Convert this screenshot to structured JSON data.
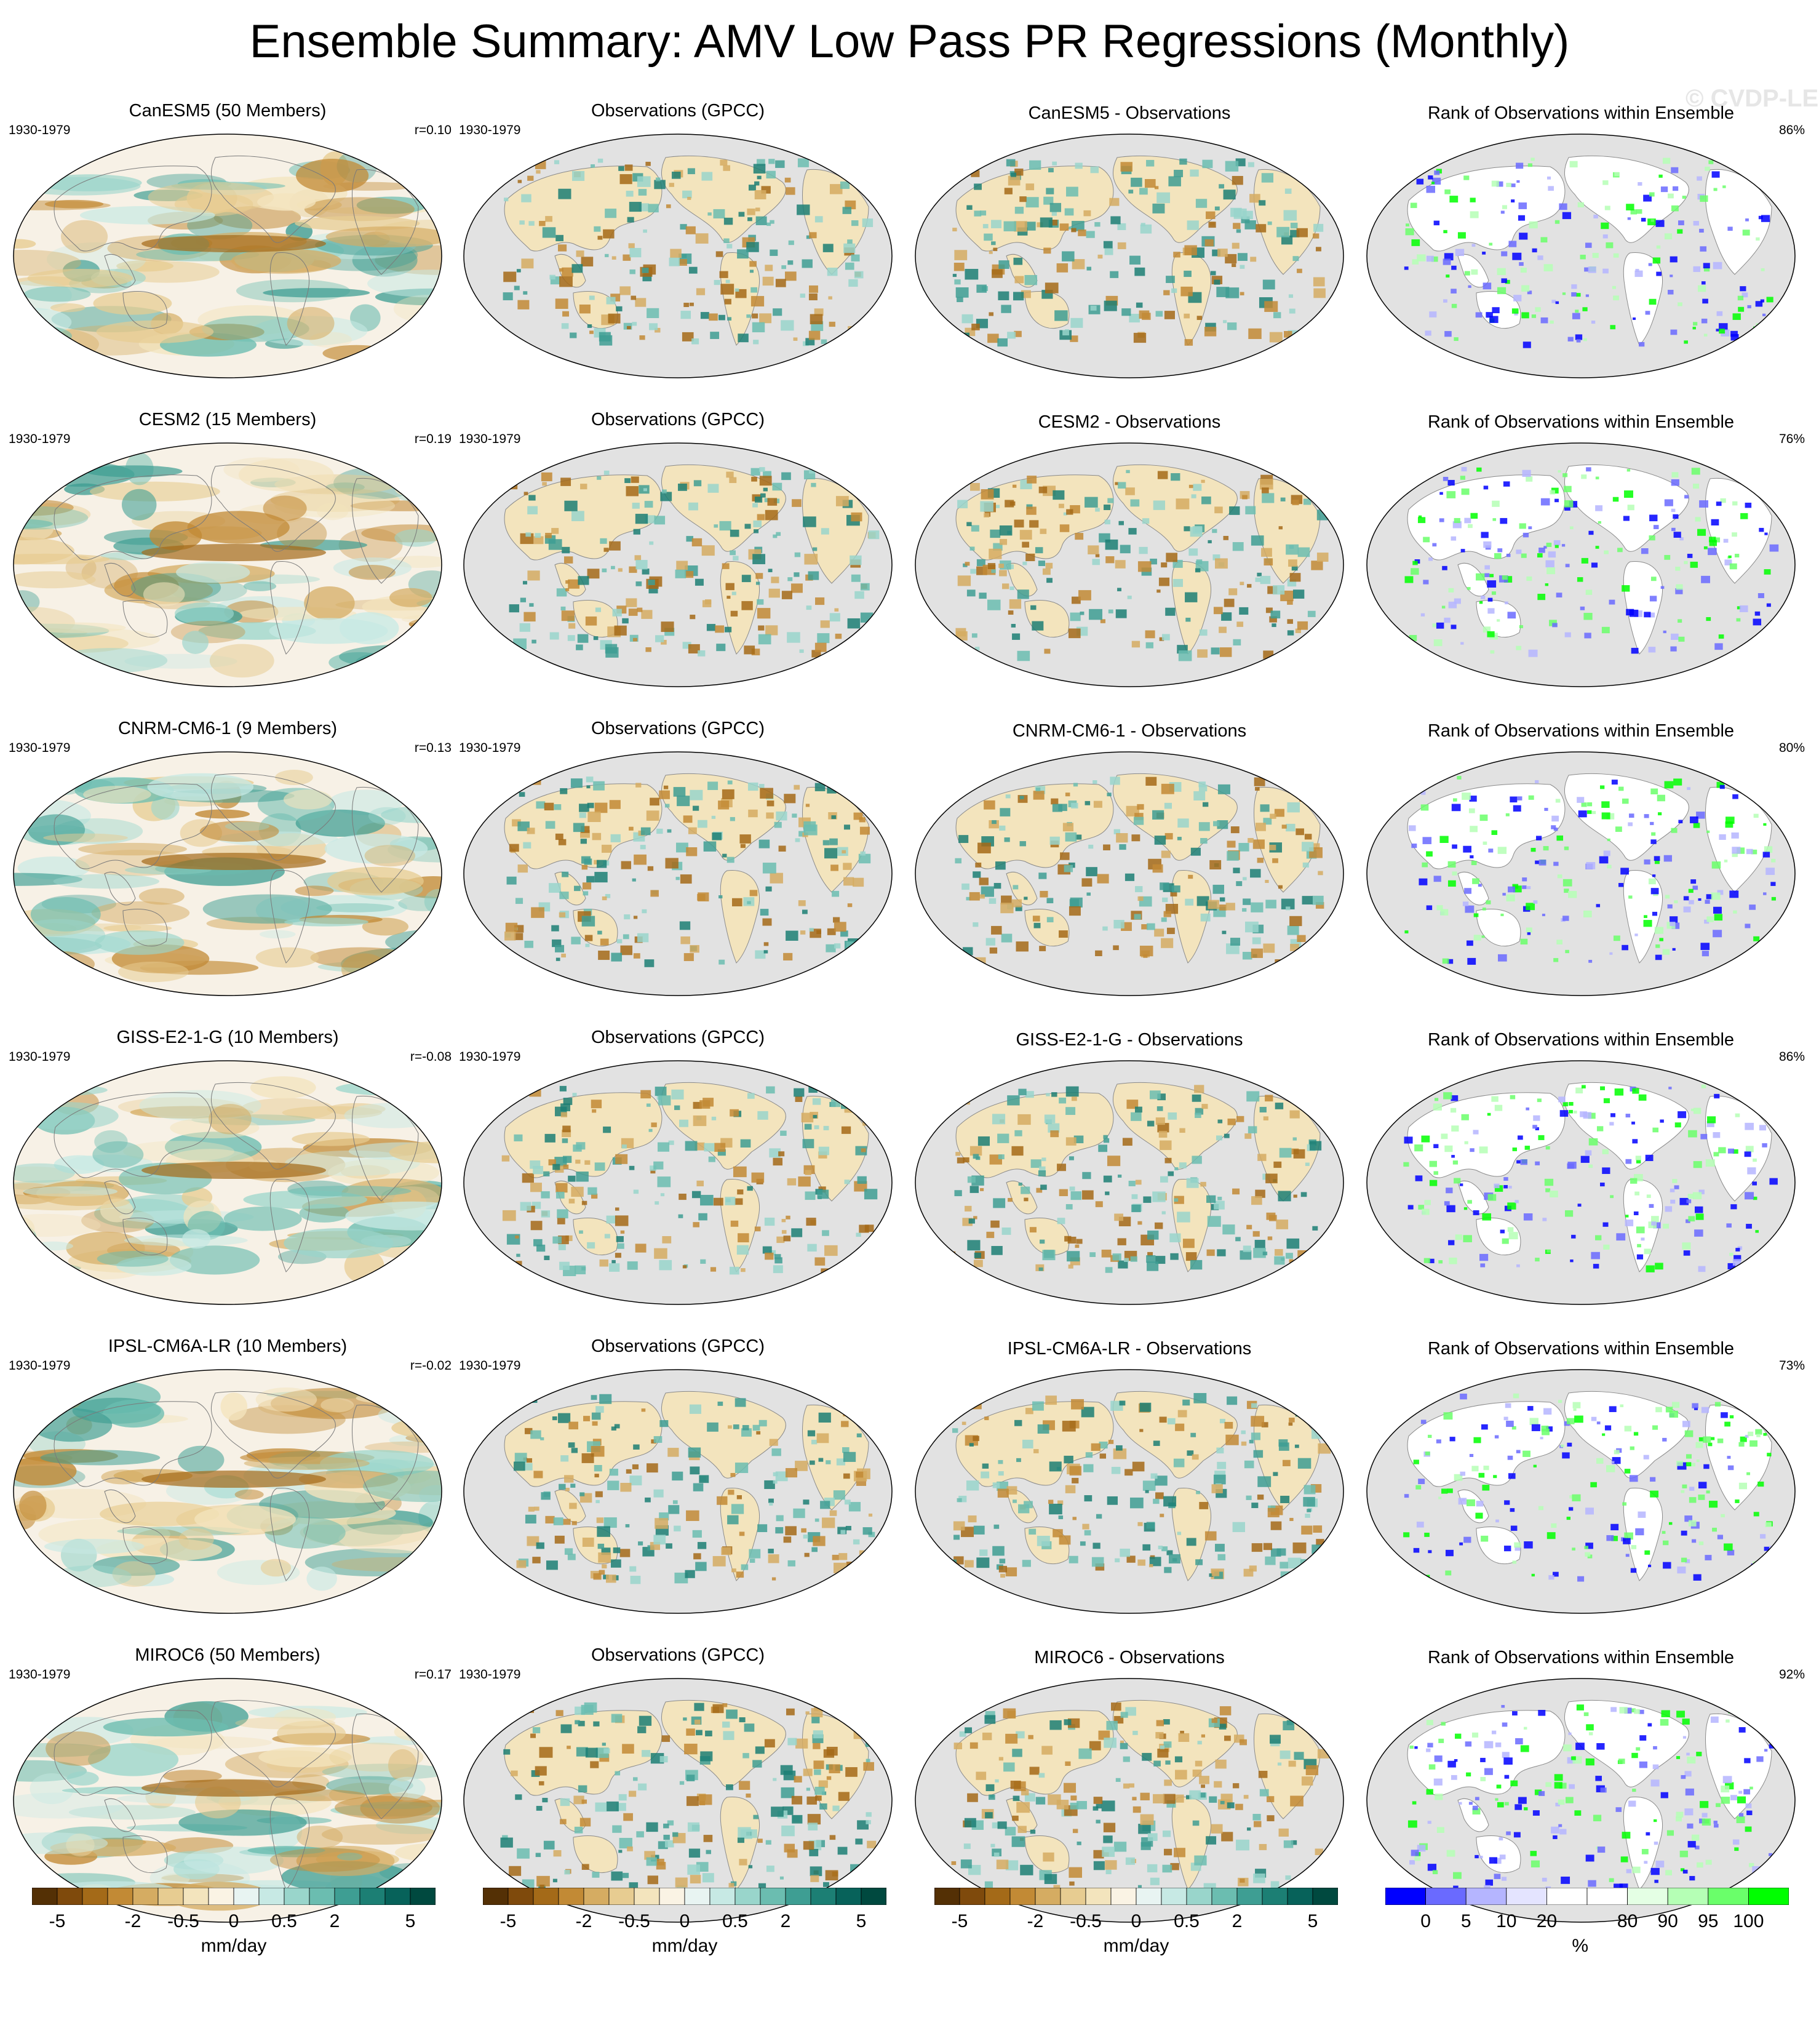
{
  "title": "Ensemble Summary: AMV Low Pass PR Regressions (Monthly)",
  "watermark": "© CVDP-LE",
  "rows": [
    {
      "model": "CanESM5 (50 Members)",
      "period": "1930-1979",
      "r": "r=0.10",
      "obs": "Observations (GPCC)",
      "obs_period": "1930-1979",
      "diff": "CanESM5 - Observations",
      "rank": "Rank of Observations within Ensemble",
      "rank_pct": "86%"
    },
    {
      "model": "CESM2 (15 Members)",
      "period": "1930-1979",
      "r": "r=0.19",
      "obs": "Observations (GPCC)",
      "obs_period": "1930-1979",
      "diff": "CESM2 - Observations",
      "rank": "Rank of Observations within Ensemble",
      "rank_pct": "76%"
    },
    {
      "model": "CNRM-CM6-1 (9 Members)",
      "period": "1930-1979",
      "r": "r=0.13",
      "obs": "Observations (GPCC)",
      "obs_period": "1930-1979",
      "diff": "CNRM-CM6-1 - Observations",
      "rank": "Rank of Observations within Ensemble",
      "rank_pct": "80%"
    },
    {
      "model": "GISS-E2-1-G (10 Members)",
      "period": "1930-1979",
      "r": "r=-0.08",
      "obs": "Observations (GPCC)",
      "obs_period": "1930-1979",
      "diff": "GISS-E2-1-G - Observations",
      "rank": "Rank of Observations within Ensemble",
      "rank_pct": "86%"
    },
    {
      "model": "IPSL-CM6A-LR (10 Members)",
      "period": "1930-1979",
      "r": "r=-0.02",
      "obs": "Observations (GPCC)",
      "obs_period": "1930-1979",
      "diff": "IPSL-CM6A-LR - Observations",
      "rank": "Rank of Observations within Ensemble",
      "rank_pct": "73%"
    },
    {
      "model": "MIROC6 (50 Members)",
      "period": "1930-1979",
      "r": "r=0.17",
      "obs": "Observations (GPCC)",
      "obs_period": "1930-1979",
      "diff": "MIROC6 - Observations",
      "rank": "Rank of Observations within Ensemble",
      "rank_pct": "92%"
    }
  ],
  "colorbars": {
    "pr": {
      "colors": [
        "#543005",
        "#7f4a0c",
        "#a46a18",
        "#c28a35",
        "#d5ac62",
        "#e7cc91",
        "#f3e4bd",
        "#faf3e4",
        "#e8f4f2",
        "#c7e9e4",
        "#99d5cb",
        "#6bbdb0",
        "#3e9e93",
        "#1c7f74",
        "#07625a",
        "#00493f"
      ],
      "ticks": [
        "-5",
        "-2",
        "-0.5",
        "0",
        "0.5",
        "2",
        "5"
      ],
      "unit": "mm/day"
    },
    "rank": {
      "colors": [
        "#0000ff",
        "#6a6aff",
        "#b5b5ff",
        "#e4e4ff",
        "#ffffff",
        "#ffffff",
        "#e4ffe4",
        "#b5ffb5",
        "#6aff6a",
        "#00ff00"
      ],
      "ticks": [
        "0",
        "5",
        "10",
        "20",
        "80",
        "90",
        "95",
        "100"
      ],
      "unit": "%"
    }
  }
}
